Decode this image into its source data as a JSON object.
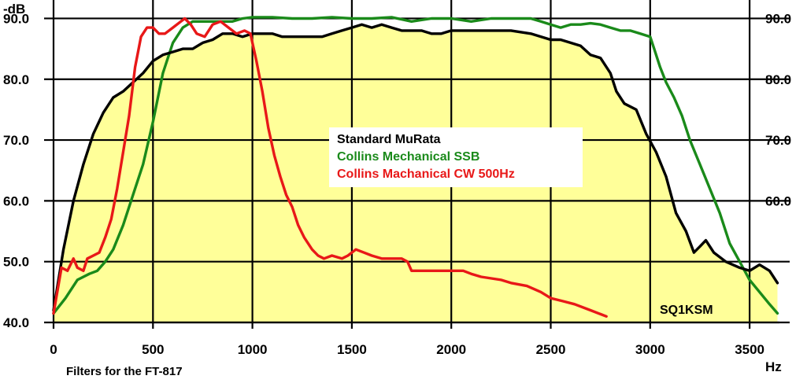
{
  "chart_data": {
    "type": "line",
    "title": "",
    "ylabel": "-dB",
    "xlabel": "Hz",
    "footnote": "Filters for the FT-817",
    "watermark": "SQ1KSM",
    "xlim": [
      0,
      3650
    ],
    "ylim": [
      40,
      92
    ],
    "x_ticks": [
      0,
      500,
      1000,
      1500,
      2000,
      2500,
      3000,
      3500
    ],
    "y_ticks": [
      40.0,
      50.0,
      60.0,
      70.0,
      80.0,
      90.0
    ],
    "y_tick_labels": [
      "40.0",
      "50.0",
      "60.0",
      "70.0",
      "80.0",
      "90.0"
    ],
    "grid": true,
    "background_color": "#ffffb8",
    "legend_position": "center",
    "series": [
      {
        "name": "Standard MuRata",
        "color": "#000000",
        "fill": "#ffff99",
        "points": [
          [
            0,
            42
          ],
          [
            50,
            52
          ],
          [
            100,
            60
          ],
          [
            150,
            66
          ],
          [
            200,
            71
          ],
          [
            250,
            74.5
          ],
          [
            300,
            77
          ],
          [
            350,
            78
          ],
          [
            400,
            79.5
          ],
          [
            450,
            81
          ],
          [
            500,
            83
          ],
          [
            550,
            84
          ],
          [
            600,
            84.5
          ],
          [
            650,
            85
          ],
          [
            700,
            85
          ],
          [
            750,
            86
          ],
          [
            800,
            86.5
          ],
          [
            850,
            87.5
          ],
          [
            900,
            87.5
          ],
          [
            950,
            87
          ],
          [
            1000,
            87.5
          ],
          [
            1050,
            87.5
          ],
          [
            1100,
            87.5
          ],
          [
            1150,
            87
          ],
          [
            1200,
            87
          ],
          [
            1250,
            87
          ],
          [
            1300,
            87
          ],
          [
            1350,
            87
          ],
          [
            1400,
            87.5
          ],
          [
            1450,
            88
          ],
          [
            1500,
            88.5
          ],
          [
            1550,
            89
          ],
          [
            1600,
            88.5
          ],
          [
            1650,
            89
          ],
          [
            1700,
            88.5
          ],
          [
            1750,
            88
          ],
          [
            1800,
            88
          ],
          [
            1850,
            88
          ],
          [
            1900,
            87.5
          ],
          [
            1950,
            87.5
          ],
          [
            2000,
            88
          ],
          [
            2100,
            88
          ],
          [
            2200,
            88
          ],
          [
            2300,
            88
          ],
          [
            2400,
            87.5
          ],
          [
            2500,
            86.5
          ],
          [
            2550,
            86.5
          ],
          [
            2600,
            86
          ],
          [
            2650,
            85.5
          ],
          [
            2700,
            84
          ],
          [
            2750,
            83.5
          ],
          [
            2800,
            81
          ],
          [
            2830,
            78
          ],
          [
            2870,
            76
          ],
          [
            2930,
            75
          ],
          [
            2980,
            71
          ],
          [
            3030,
            68
          ],
          [
            3080,
            64
          ],
          [
            3130,
            58
          ],
          [
            3180,
            55
          ],
          [
            3220,
            51.5
          ],
          [
            3250,
            52.5
          ],
          [
            3280,
            53.5
          ],
          [
            3320,
            51.5
          ],
          [
            3380,
            50
          ],
          [
            3450,
            49
          ],
          [
            3500,
            48.5
          ],
          [
            3550,
            49.5
          ],
          [
            3600,
            48.5
          ],
          [
            3640,
            46.5
          ]
        ]
      },
      {
        "name": "Collins Mechanical SSB",
        "color": "#1a8a1a",
        "points": [
          [
            0,
            41.5
          ],
          [
            60,
            44
          ],
          [
            120,
            47
          ],
          [
            180,
            48
          ],
          [
            220,
            48.5
          ],
          [
            260,
            50
          ],
          [
            300,
            52
          ],
          [
            350,
            56
          ],
          [
            400,
            61
          ],
          [
            450,
            66
          ],
          [
            500,
            73
          ],
          [
            550,
            81
          ],
          [
            600,
            86
          ],
          [
            650,
            88.5
          ],
          [
            700,
            89.5
          ],
          [
            750,
            89.5
          ],
          [
            800,
            89.5
          ],
          [
            850,
            89.5
          ],
          [
            900,
            89.5
          ],
          [
            950,
            90
          ],
          [
            1000,
            90.2
          ],
          [
            1100,
            90.2
          ],
          [
            1200,
            90
          ],
          [
            1300,
            90
          ],
          [
            1400,
            90.2
          ],
          [
            1500,
            90
          ],
          [
            1600,
            90
          ],
          [
            1700,
            90.2
          ],
          [
            1800,
            89.5
          ],
          [
            1900,
            90
          ],
          [
            2000,
            90
          ],
          [
            2100,
            89.5
          ],
          [
            2200,
            90
          ],
          [
            2300,
            90
          ],
          [
            2400,
            90
          ],
          [
            2450,
            89.5
          ],
          [
            2500,
            89
          ],
          [
            2550,
            88.5
          ],
          [
            2600,
            89
          ],
          [
            2650,
            89
          ],
          [
            2700,
            89.2
          ],
          [
            2750,
            89
          ],
          [
            2800,
            88.5
          ],
          [
            2850,
            88
          ],
          [
            2900,
            88
          ],
          [
            2950,
            87.5
          ],
          [
            3000,
            87
          ],
          [
            3020,
            85
          ],
          [
            3050,
            82
          ],
          [
            3080,
            79.5
          ],
          [
            3120,
            77
          ],
          [
            3160,
            74
          ],
          [
            3200,
            70
          ],
          [
            3250,
            66
          ],
          [
            3300,
            62
          ],
          [
            3350,
            58
          ],
          [
            3400,
            53
          ],
          [
            3450,
            50
          ],
          [
            3500,
            47
          ],
          [
            3550,
            45
          ],
          [
            3600,
            43
          ],
          [
            3640,
            41.5
          ]
        ]
      },
      {
        "name": "Collins Machanical CW 500Hz",
        "color": "#e81818",
        "points": [
          [
            0,
            41.5
          ],
          [
            40,
            49
          ],
          [
            70,
            48.5
          ],
          [
            100,
            50.5
          ],
          [
            120,
            49
          ],
          [
            150,
            48.5
          ],
          [
            170,
            50.5
          ],
          [
            200,
            51
          ],
          [
            230,
            51.5
          ],
          [
            260,
            54
          ],
          [
            290,
            57
          ],
          [
            320,
            62
          ],
          [
            350,
            68
          ],
          [
            380,
            74
          ],
          [
            410,
            82
          ],
          [
            440,
            87
          ],
          [
            470,
            88.5
          ],
          [
            500,
            88.5
          ],
          [
            530,
            87.5
          ],
          [
            560,
            87.5
          ],
          [
            600,
            88.5
          ],
          [
            640,
            89.5
          ],
          [
            660,
            90
          ],
          [
            690,
            89
          ],
          [
            720,
            87.5
          ],
          [
            760,
            87
          ],
          [
            800,
            89
          ],
          [
            840,
            89.5
          ],
          [
            880,
            88.5
          ],
          [
            920,
            87.5
          ],
          [
            960,
            88
          ],
          [
            990,
            87.5
          ],
          [
            1000,
            86
          ],
          [
            1020,
            83
          ],
          [
            1050,
            78
          ],
          [
            1080,
            72
          ],
          [
            1110,
            67.5
          ],
          [
            1140,
            64
          ],
          [
            1170,
            61
          ],
          [
            1200,
            59
          ],
          [
            1230,
            56
          ],
          [
            1260,
            54
          ],
          [
            1300,
            52
          ],
          [
            1330,
            51
          ],
          [
            1360,
            50.5
          ],
          [
            1400,
            51
          ],
          [
            1450,
            50.5
          ],
          [
            1480,
            51
          ],
          [
            1520,
            52
          ],
          [
            1560,
            51.5
          ],
          [
            1600,
            51
          ],
          [
            1650,
            50.5
          ],
          [
            1700,
            50.5
          ],
          [
            1750,
            50.5
          ],
          [
            1780,
            50
          ],
          [
            1800,
            48.5
          ],
          [
            1850,
            48.5
          ],
          [
            1900,
            48.5
          ],
          [
            1950,
            48.5
          ],
          [
            2000,
            48.5
          ],
          [
            2060,
            48.5
          ],
          [
            2100,
            48
          ],
          [
            2150,
            47.5
          ],
          [
            2250,
            47
          ],
          [
            2300,
            46.5
          ],
          [
            2380,
            46
          ],
          [
            2450,
            45
          ],
          [
            2500,
            44
          ],
          [
            2560,
            43.5
          ],
          [
            2620,
            43
          ],
          [
            2700,
            42
          ],
          [
            2780,
            41
          ]
        ]
      }
    ]
  }
}
